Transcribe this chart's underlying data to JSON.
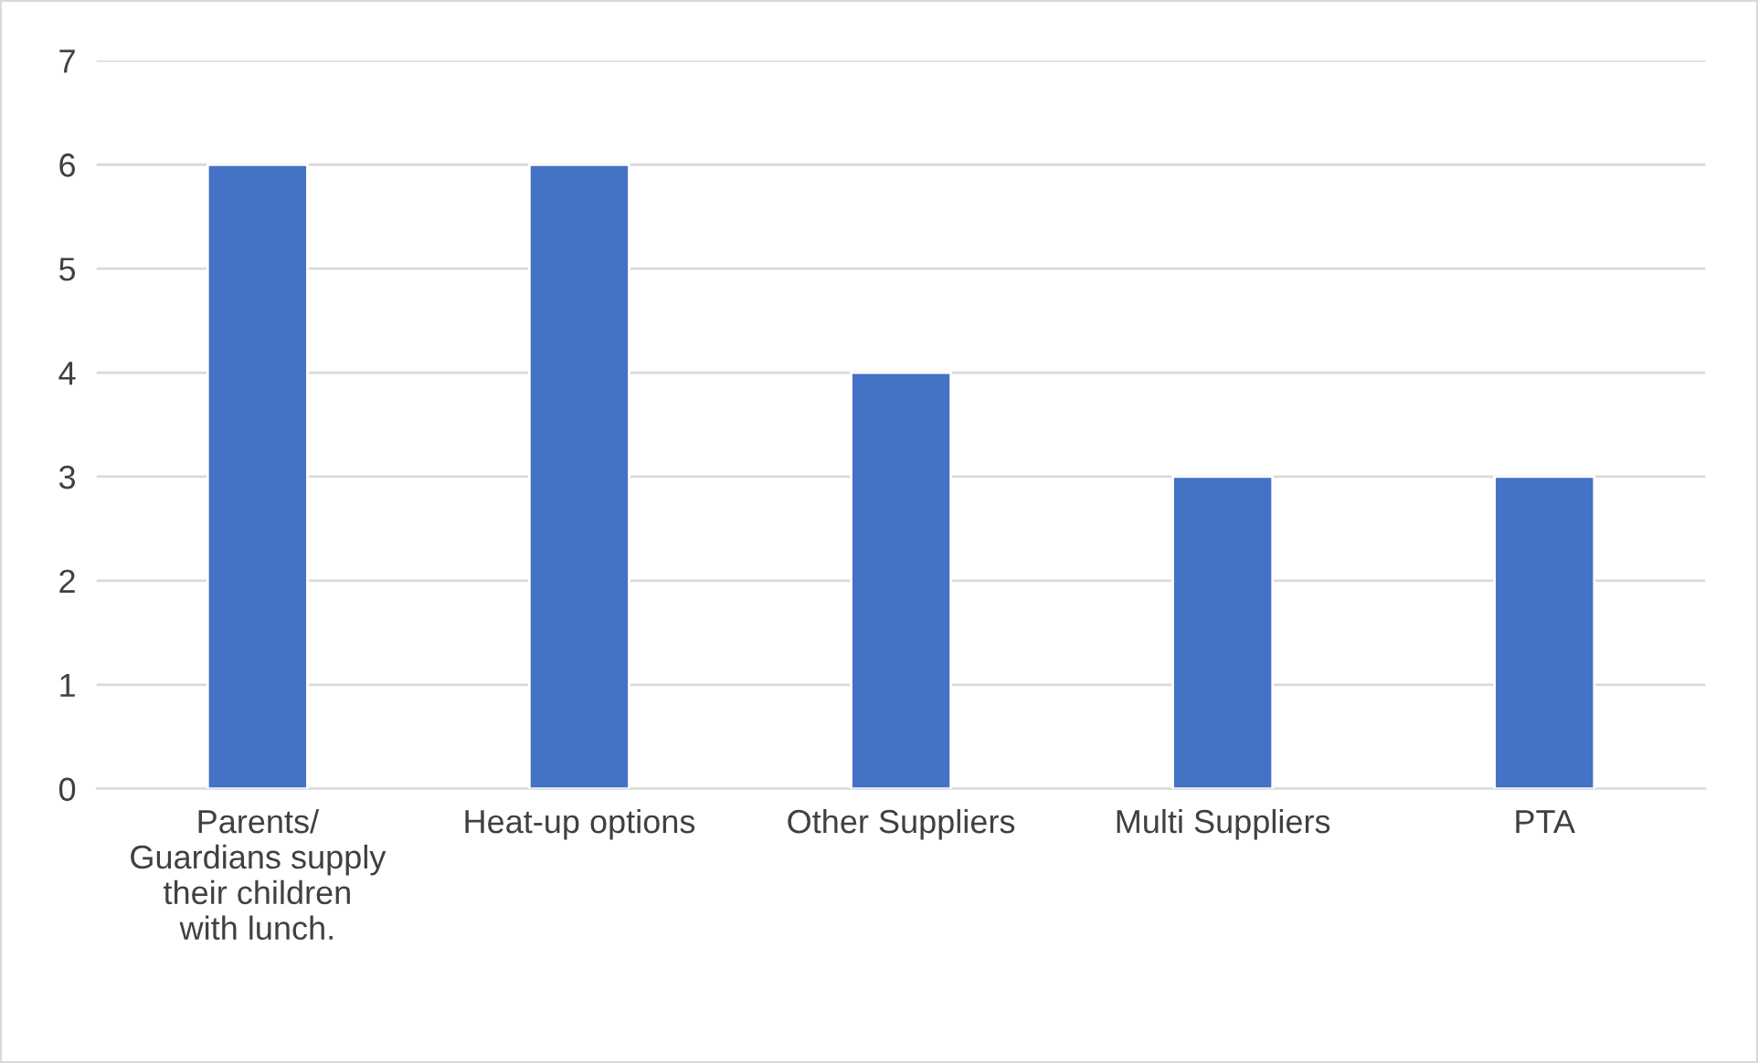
{
  "chart_data": {
    "type": "bar",
    "categories": [
      "Parents/\nGuardians supply\ntheir children\nwith lunch.",
      "Heat-up options",
      "Other Suppliers",
      "Multi Suppliers",
      "PTA"
    ],
    "values": [
      6,
      6,
      4,
      3,
      3
    ],
    "color": "#4472c4",
    "ylim": [
      0,
      7
    ],
    "yticks": [
      0,
      1,
      2,
      3,
      4,
      5,
      6,
      7
    ],
    "grid": "y"
  }
}
